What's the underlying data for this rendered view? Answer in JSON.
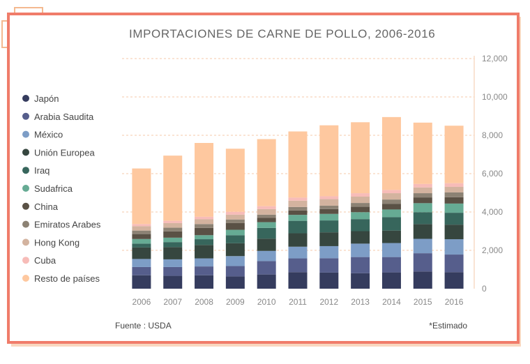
{
  "chart_data": {
    "type": "bar",
    "stacked": true,
    "title": "IMPORTACIONES DE CARNE DE POLLO, 2006-2016",
    "categories": [
      "2006",
      "2007",
      "2008",
      "2009",
      "2010",
      "2011",
      "2012",
      "2013",
      "2014",
      "2015",
      "2016"
    ],
    "series": [
      {
        "name": "Japón",
        "color": "#353c5e",
        "values": [
          700,
          670,
          700,
          640,
          740,
          860,
          840,
          810,
          850,
          900,
          860
        ]
      },
      {
        "name": "Arabia Saudita",
        "color": "#565e8c",
        "values": [
          430,
          460,
          460,
          540,
          700,
          720,
          750,
          840,
          800,
          950,
          920
        ]
      },
      {
        "name": "México",
        "color": "#7d9dc6",
        "values": [
          420,
          400,
          420,
          520,
          530,
          610,
          630,
          700,
          730,
          750,
          800
        ]
      },
      {
        "name": "Unión Europea",
        "color": "#36463f",
        "values": [
          600,
          640,
          700,
          670,
          640,
          700,
          720,
          650,
          650,
          770,
          760
        ]
      },
      {
        "name": "Iraq",
        "color": "#37665c",
        "values": [
          200,
          260,
          300,
          420,
          560,
          650,
          620,
          630,
          700,
          620,
          620
        ]
      },
      {
        "name": "Sudafrica",
        "color": "#66ab94",
        "values": [
          240,
          230,
          210,
          280,
          300,
          310,
          340,
          360,
          400,
          470,
          480
        ]
      },
      {
        "name": "China",
        "color": "#5a5145",
        "values": [
          260,
          330,
          380,
          350,
          220,
          230,
          250,
          280,
          300,
          300,
          330
        ]
      },
      {
        "name": "Emiratos Arabes",
        "color": "#8c8274",
        "values": [
          180,
          190,
          200,
          190,
          170,
          180,
          180,
          200,
          220,
          220,
          250
        ]
      },
      {
        "name": "Hong Kong",
        "color": "#d3b39f",
        "values": [
          230,
          240,
          250,
          250,
          290,
          330,
          340,
          330,
          330,
          300,
          290
        ]
      },
      {
        "name": "Cuba",
        "color": "#f7bcb8",
        "values": [
          110,
          120,
          130,
          150,
          150,
          160,
          150,
          180,
          170,
          180,
          190
        ]
      },
      {
        "name": "Resto de países",
        "color": "#fec89f",
        "values": [
          2900,
          3400,
          3850,
          3290,
          3500,
          3450,
          3700,
          3700,
          3800,
          3200,
          3000
        ]
      }
    ],
    "y_ticks": [
      "0",
      "2,000",
      "4,000",
      "6,000",
      "8,000",
      "10,000",
      "12,000"
    ],
    "ylim": [
      0,
      12000
    ],
    "grid": true,
    "legend_position": "left",
    "source_note": "Fuente : USDA",
    "estimate_note": "*Estimado"
  }
}
